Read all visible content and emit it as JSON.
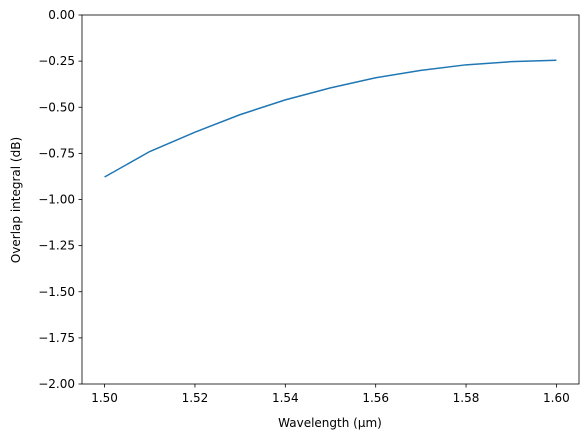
{
  "chart_data": {
    "type": "line",
    "x_label": "Wavelength (μm)",
    "y_label": "Overlap integral (dB)",
    "x": [
      1.5,
      1.51,
      1.52,
      1.53,
      1.54,
      1.55,
      1.56,
      1.57,
      1.58,
      1.59,
      1.6
    ],
    "series": [
      {
        "color": "#1f77b4",
        "values": [
          -0.878,
          -0.74,
          -0.635,
          -0.54,
          -0.46,
          -0.395,
          -0.34,
          -0.3,
          -0.27,
          -0.253,
          -0.245
        ]
      }
    ],
    "xlim": [
      1.495,
      1.605
    ],
    "ylim": [
      -2,
      0
    ],
    "xticks": [
      {
        "value": 1.5,
        "label": "1.50"
      },
      1.52,
      1.54,
      1.56,
      1.58,
      {
        "value": 1.6,
        "label": "1.60"
      }
    ],
    "yticks": [
      {
        "value": -2,
        "label": "−2.00"
      },
      {
        "value": -1.75,
        "label": "−1.75"
      },
      {
        "value": -1.5,
        "label": "−1.50"
      },
      {
        "value": -1.25,
        "label": "−1.25"
      },
      {
        "value": -1,
        "label": "−1.00"
      },
      {
        "value": -0.75,
        "label": "−0.75"
      },
      {
        "value": -0.5,
        "label": "−0.50"
      },
      {
        "value": -0.25,
        "label": "−0.25"
      },
      {
        "value": 0,
        "label": "0.00"
      }
    ],
    "grid": false
  }
}
